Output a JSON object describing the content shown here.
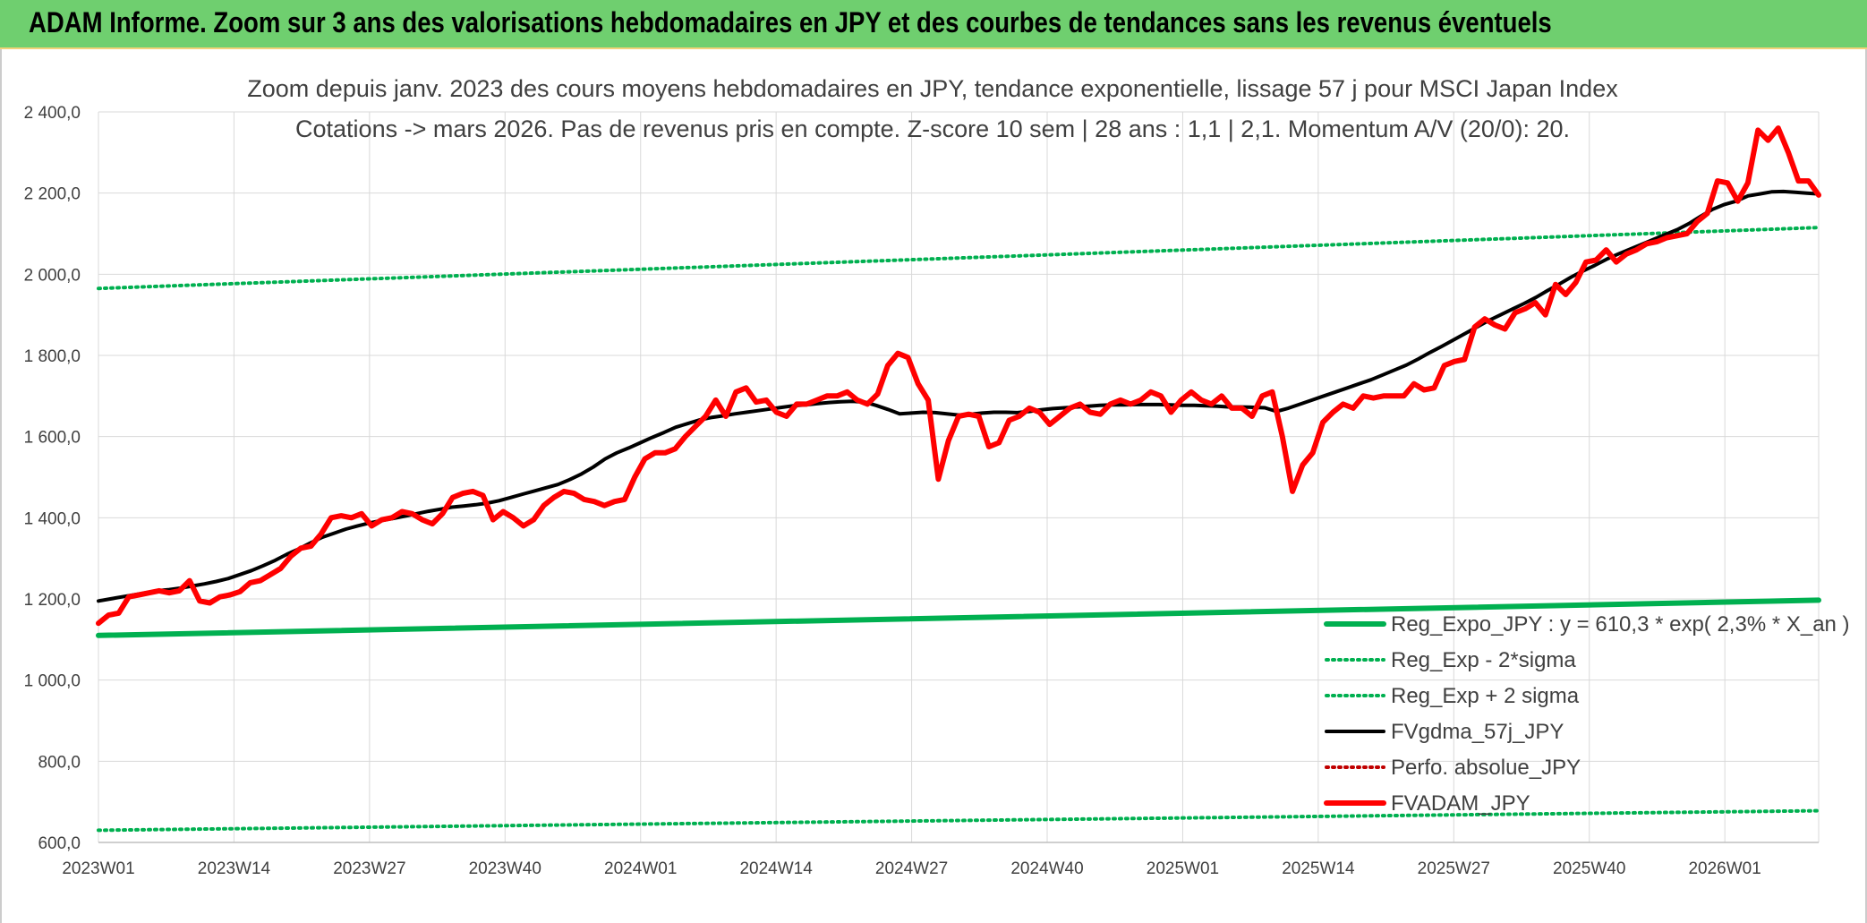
{
  "banner": {
    "title": "ADAM Informe. Zoom sur 3 ans des valorisations hebdomadaires en JPY et des courbes de tendances sans les revenus éventuels"
  },
  "colors": {
    "banner_bg": "#6fcf6f",
    "reg_expo": "#00b050",
    "reg_sigma": "#00b050",
    "fvgdma": "#000000",
    "perfo": "#c00000",
    "fvadam": "#ff0000"
  },
  "chart_data": {
    "type": "line",
    "title_line1": "Zoom depuis janv. 2023 des cours moyens hebdomadaires en JPY, tendance exponentielle, lissage 57 j pour MSCI Japan Index",
    "title_line2": "Cotations -> mars 2026. Pas de revenus pris en compte. Z-score 10 sem | 28 ans : 1,1 | 2,1. Momentum A/V (20/0): 20.",
    "ylim": [
      600,
      2400
    ],
    "yticks": [
      "600,0",
      "800,0",
      "1 000,0",
      "1 200,0",
      "1 400,0",
      "1 600,0",
      "1 800,0",
      "2 000,0",
      "2 200,0",
      "2 400,0"
    ],
    "xticks": [
      "2023W01",
      "2023W14",
      "2023W27",
      "2023W40",
      "2024W01",
      "2024W14",
      "2024W27",
      "2024W40",
      "2025W01",
      "2025W14",
      "2025W27",
      "2025W40",
      "2026W01"
    ],
    "grid": true,
    "legend_position": "bottom-right",
    "series": [
      {
        "name": "Reg_Expo_JPY : y = 610,3 * exp( 2,3% *  X_an )",
        "style": "solid-thick",
        "color": "#00b050",
        "values": [
          1110,
          1197
        ]
      },
      {
        "name": "Reg_Exp - 2*sigma",
        "style": "dotted",
        "color": "#00b050",
        "values": [
          630,
          678
        ]
      },
      {
        "name": "Reg_Exp + 2 sigma",
        "style": "dotted",
        "color": "#00b050",
        "values": [
          1965,
          2115
        ]
      },
      {
        "name": "FVgdma_57j_JPY",
        "style": "solid",
        "color": "#000000",
        "values": [
          1195,
          1200,
          1205,
          1210,
          1215,
          1220,
          1223,
          1227,
          1232,
          1237,
          1243,
          1250,
          1260,
          1270,
          1282,
          1295,
          1310,
          1323,
          1338,
          1352,
          1362,
          1372,
          1380,
          1387,
          1393,
          1398,
          1404,
          1410,
          1416,
          1421,
          1426,
          1429,
          1432,
          1436,
          1442,
          1450,
          1458,
          1466,
          1474,
          1482,
          1494,
          1508,
          1525,
          1545,
          1560,
          1572,
          1585,
          1598,
          1610,
          1623,
          1632,
          1641,
          1647,
          1651,
          1656,
          1660,
          1664,
          1668,
          1672,
          1676,
          1678,
          1681,
          1684,
          1686,
          1687,
          1685,
          1677,
          1667,
          1656,
          1658,
          1660,
          1659,
          1656,
          1653,
          1655,
          1658,
          1660,
          1660,
          1659,
          1662,
          1666,
          1669,
          1671,
          1673,
          1675,
          1677,
          1678,
          1678,
          1679,
          1679,
          1679,
          1678,
          1677,
          1677,
          1676,
          1675,
          1673,
          1673,
          1672,
          1671,
          1662,
          1670,
          1680,
          1690,
          1700,
          1710,
          1720,
          1730,
          1740,
          1752,
          1764,
          1776,
          1791,
          1807,
          1822,
          1838,
          1854,
          1870,
          1886,
          1900,
          1914,
          1928,
          1943,
          1960,
          1976,
          1993,
          2008,
          2022,
          2037,
          2050,
          2062,
          2074,
          2086,
          2098,
          2110,
          2125,
          2143,
          2160,
          2172,
          2180,
          2193,
          2198,
          2203,
          2204,
          2202,
          2200,
          2198
        ]
      },
      {
        "name": "Perfo. absolue_JPY",
        "style": "dotted",
        "color": "#c00000",
        "values": []
      },
      {
        "name": "FVADAM_JPY",
        "style": "solid-thick",
        "color": "#ff0000",
        "values": [
          1140,
          1160,
          1165,
          1205,
          1210,
          1215,
          1220,
          1215,
          1220,
          1245,
          1195,
          1190,
          1205,
          1210,
          1218,
          1240,
          1245,
          1260,
          1275,
          1305,
          1325,
          1330,
          1360,
          1400,
          1405,
          1400,
          1410,
          1380,
          1395,
          1400,
          1415,
          1410,
          1395,
          1385,
          1410,
          1450,
          1460,
          1465,
          1455,
          1395,
          1415,
          1400,
          1380,
          1395,
          1430,
          1450,
          1465,
          1460,
          1445,
          1440,
          1430,
          1440,
          1445,
          1500,
          1545,
          1560,
          1560,
          1570,
          1600,
          1625,
          1650,
          1690,
          1650,
          1710,
          1720,
          1685,
          1690,
          1660,
          1650,
          1680,
          1680,
          1690,
          1700,
          1700,
          1710,
          1690,
          1680,
          1705,
          1775,
          1805,
          1795,
          1730,
          1690,
          1495,
          1590,
          1650,
          1655,
          1650,
          1575,
          1585,
          1640,
          1650,
          1670,
          1660,
          1630,
          1650,
          1670,
          1680,
          1660,
          1655,
          1680,
          1690,
          1680,
          1690,
          1710,
          1700,
          1660,
          1690,
          1710,
          1690,
          1680,
          1700,
          1670,
          1670,
          1650,
          1700,
          1710,
          1600,
          1465,
          1530,
          1560,
          1635,
          1660,
          1680,
          1670,
          1700,
          1695,
          1700,
          1700,
          1700,
          1730,
          1715,
          1720,
          1775,
          1785,
          1790,
          1870,
          1890,
          1875,
          1865,
          1905,
          1915,
          1930,
          1900,
          1975,
          1950,
          1980,
          2030,
          2035,
          2060,
          2030,
          2050,
          2060,
          2075,
          2080,
          2090,
          2095,
          2100,
          2130,
          2150,
          2230,
          2225,
          2180,
          2225,
          2355,
          2330,
          2360,
          2300,
          2230,
          2230,
          2195
        ]
      }
    ]
  }
}
